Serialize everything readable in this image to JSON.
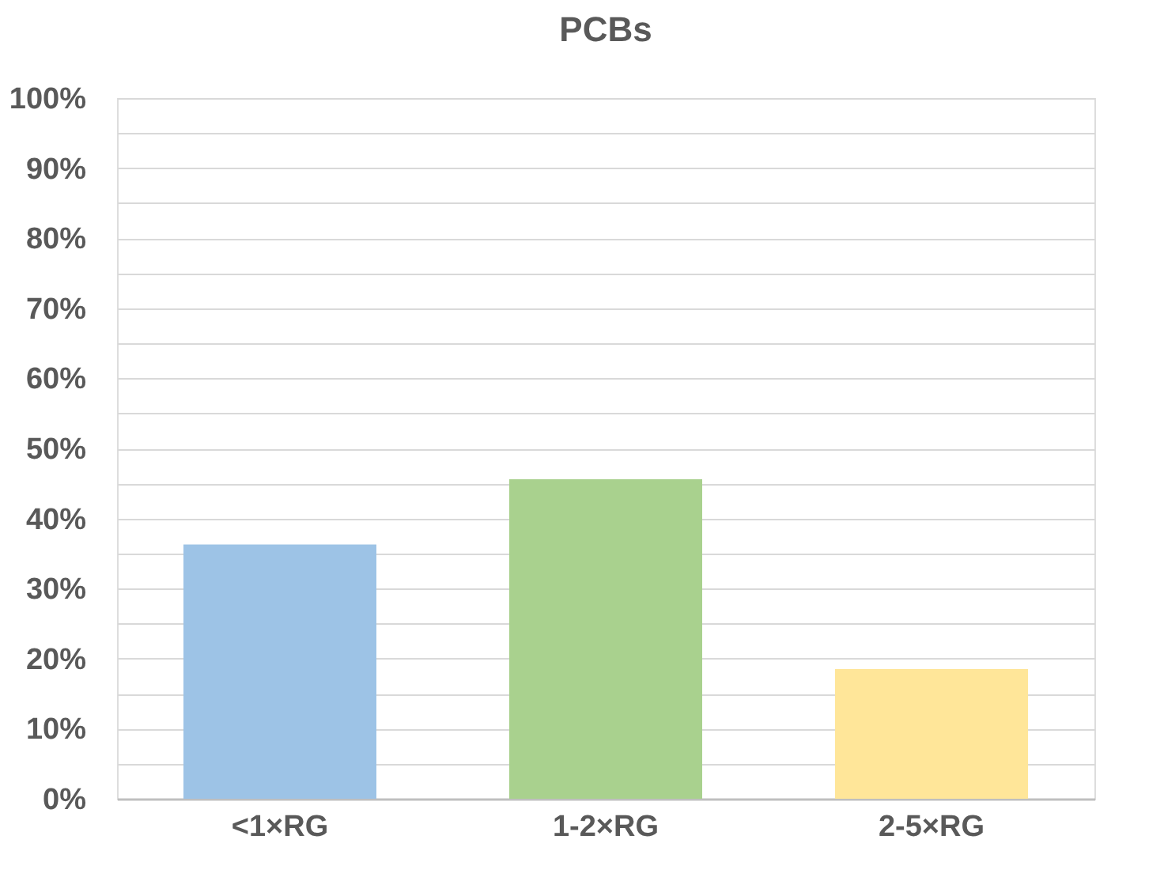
{
  "chart_data": {
    "type": "bar",
    "title": "PCBs",
    "categories": [
      "<1×RG",
      "1-2×RG",
      "2-5×RG"
    ],
    "values": [
      36.3,
      45.6,
      18.5
    ],
    "colors": [
      "#9dc3e6",
      "#a9d18e",
      "#ffe699"
    ],
    "ylim": [
      0,
      100
    ],
    "yticks": [
      {
        "value": 0,
        "label": "0%"
      },
      {
        "value": 5,
        "label": null
      },
      {
        "value": 10,
        "label": "10%"
      },
      {
        "value": 15,
        "label": null
      },
      {
        "value": 20,
        "label": "20%"
      },
      {
        "value": 25,
        "label": null
      },
      {
        "value": 30,
        "label": "30%"
      },
      {
        "value": 35,
        "label": null
      },
      {
        "value": 40,
        "label": "40%"
      },
      {
        "value": 45,
        "label": null
      },
      {
        "value": 50,
        "label": "50%"
      },
      {
        "value": 55,
        "label": null
      },
      {
        "value": 60,
        "label": "60%"
      },
      {
        "value": 65,
        "label": null
      },
      {
        "value": 70,
        "label": "70%"
      },
      {
        "value": 75,
        "label": null
      },
      {
        "value": 80,
        "label": "80%"
      },
      {
        "value": 85,
        "label": null
      },
      {
        "value": 90,
        "label": "90%"
      },
      {
        "value": 95,
        "label": null
      },
      {
        "value": 100,
        "label": "100%"
      }
    ],
    "grid": "y",
    "legend": false
  }
}
